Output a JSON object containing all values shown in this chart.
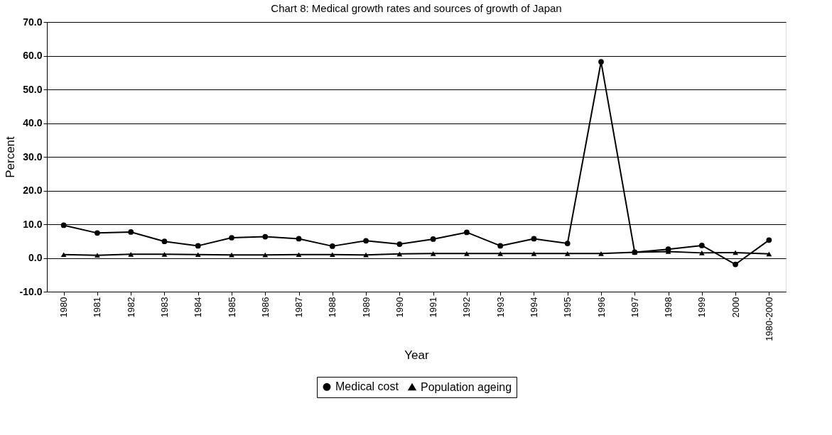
{
  "chart_data": {
    "type": "line",
    "title": "Chart 8: Medical growth rates and sources of growth of Japan",
    "xlabel": "Year",
    "ylabel": "Percent",
    "categories": [
      "1980",
      "1981",
      "1982",
      "1983",
      "1984",
      "1985",
      "1986",
      "1987",
      "1988",
      "1989",
      "1990",
      "1991",
      "1992",
      "1993",
      "1994",
      "1995",
      "1996",
      "1997",
      "1998",
      "1999",
      "2000",
      "1980-2000"
    ],
    "series": [
      {
        "name": "Medical cost",
        "color": "#000000",
        "marker": "circle",
        "values": [
          9.7,
          7.4,
          7.7,
          4.9,
          3.6,
          6.0,
          6.3,
          5.7,
          3.5,
          5.1,
          4.1,
          5.6,
          7.6,
          3.6,
          5.7,
          4.3,
          58.2,
          1.7,
          2.6,
          3.7,
          -1.9,
          5.3
        ]
      },
      {
        "name": "Population ageing",
        "color": "#000000",
        "marker": "triangle",
        "values": [
          1.0,
          0.8,
          1.1,
          1.1,
          1.0,
          0.9,
          0.9,
          1.0,
          1.0,
          0.9,
          1.2,
          1.3,
          1.3,
          1.3,
          1.3,
          1.3,
          1.3,
          1.7,
          1.9,
          1.5,
          1.6,
          1.2
        ]
      }
    ],
    "ylim": [
      -10,
      70
    ],
    "yticks": [
      {
        "value": -10,
        "label": "-10.0"
      },
      {
        "value": 0,
        "label": "0.0"
      },
      {
        "value": 10,
        "label": "10.0"
      },
      {
        "value": 20,
        "label": "20.0"
      },
      {
        "value": 30,
        "label": "30.0"
      },
      {
        "value": 40,
        "label": "40.0"
      },
      {
        "value": 50,
        "label": "50.0"
      },
      {
        "value": 60,
        "label": "60.0"
      },
      {
        "value": 70,
        "label": "70.0"
      }
    ],
    "grid": "y",
    "legend": "bottom",
    "line_style": "solid"
  }
}
